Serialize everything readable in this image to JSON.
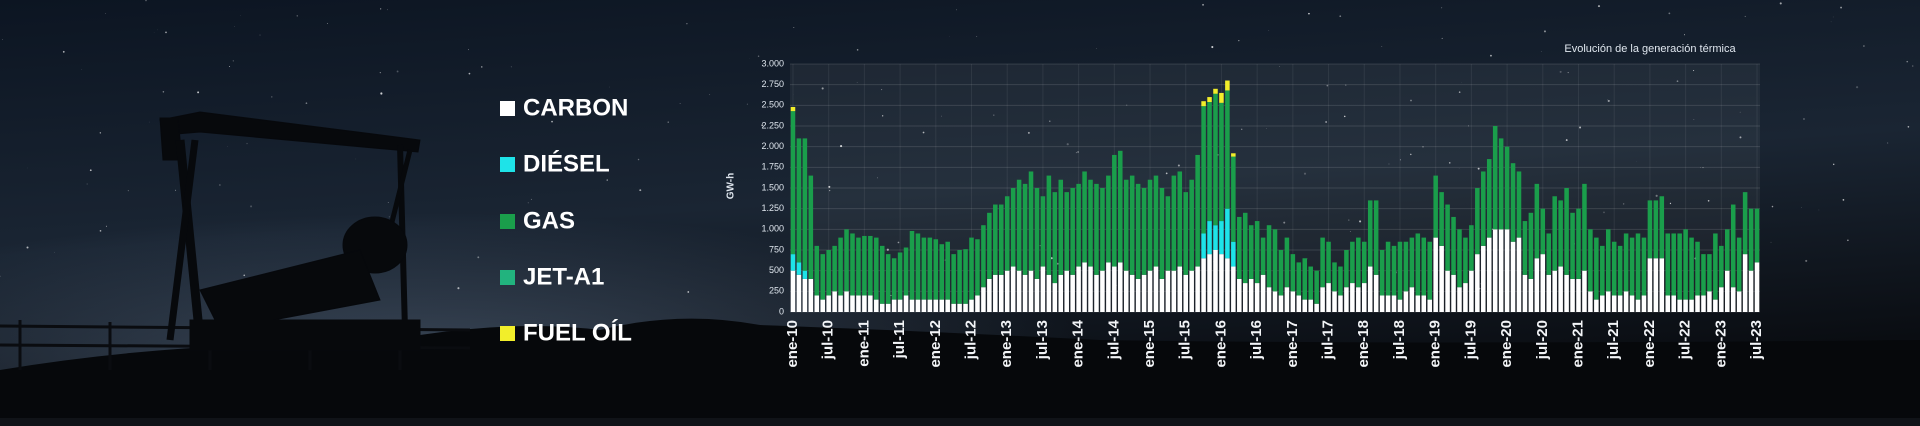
{
  "chart_data": {
    "type": "stacked_bar",
    "title": "Evolución de la generación térmica",
    "y_label": "GW-h",
    "ylim": [
      0,
      3000
    ],
    "yticks": [
      0,
      250,
      500,
      750,
      {
        "value": 1000,
        "label": "1.000"
      },
      {
        "value": 1250,
        "label": "1.250"
      },
      {
        "value": 1500,
        "label": "1.500"
      },
      {
        "value": 1750,
        "label": "1.750"
      },
      {
        "value": 2000,
        "label": "2.000"
      },
      {
        "value": 2250,
        "label": "2.250"
      },
      {
        "value": 2500,
        "label": "2.500"
      },
      {
        "value": 2750,
        "label": "2.750"
      },
      {
        "value": 3000,
        "label": "3.000"
      }
    ],
    "grid": true,
    "categories": [
      "ene-10",
      null,
      null,
      null,
      null,
      null,
      "jul-10",
      null,
      null,
      null,
      null,
      null,
      "ene-11",
      null,
      null,
      null,
      null,
      null,
      "jul-11",
      null,
      null,
      null,
      null,
      null,
      "ene-12",
      null,
      null,
      null,
      null,
      null,
      "jul-12",
      null,
      null,
      null,
      null,
      null,
      "ene-13",
      null,
      null,
      null,
      null,
      null,
      "jul-13",
      null,
      null,
      null,
      null,
      null,
      "ene-14",
      null,
      null,
      null,
      null,
      null,
      "jul-14",
      null,
      null,
      null,
      null,
      null,
      "ene-15",
      null,
      null,
      null,
      null,
      null,
      "jul-15",
      null,
      null,
      null,
      null,
      null,
      "ene-16",
      null,
      null,
      null,
      null,
      null,
      "jul-16",
      null,
      null,
      null,
      null,
      null,
      "ene-17",
      null,
      null,
      null,
      null,
      null,
      "jul-17",
      null,
      null,
      null,
      null,
      null,
      "ene-18",
      null,
      null,
      null,
      null,
      null,
      "jul-18",
      null,
      null,
      null,
      null,
      null,
      "ene-19",
      null,
      null,
      null,
      null,
      null,
      "jul-19",
      null,
      null,
      null,
      null,
      null,
      "ene-20",
      null,
      null,
      null,
      null,
      null,
      "jul-20",
      null,
      null,
      null,
      null,
      null,
      "ene-21",
      null,
      null,
      null,
      null,
      null,
      "jul-21",
      null,
      null,
      null,
      null,
      null,
      "ene-22",
      null,
      null,
      null,
      null,
      null,
      "jul-22",
      null,
      null,
      null,
      null,
      null,
      "ene-23",
      null,
      null,
      null,
      null,
      null,
      "jul-23"
    ],
    "series": [
      {
        "name": "CARBON",
        "color": "#ffffff",
        "values": [
          500,
          450,
          400,
          400,
          200,
          150,
          200,
          250,
          200,
          250,
          200,
          200,
          200,
          200,
          150,
          100,
          100,
          150,
          150,
          200,
          150,
          150,
          150,
          150,
          150,
          150,
          150,
          100,
          100,
          100,
          150,
          200,
          300,
          400,
          450,
          450,
          500,
          550,
          500,
          450,
          500,
          400,
          550,
          450,
          350,
          450,
          500,
          450,
          550,
          600,
          550,
          450,
          500,
          600,
          550,
          600,
          500,
          450,
          400,
          450,
          500,
          550,
          400,
          500,
          500,
          550,
          450,
          500,
          550,
          650,
          700,
          750,
          700,
          650,
          550,
          400,
          350,
          400,
          350,
          450,
          300,
          250,
          200,
          300,
          250,
          200,
          150,
          150,
          100,
          300,
          350,
          250,
          200,
          300,
          350,
          300,
          350,
          550,
          450,
          200,
          200,
          200,
          150,
          250,
          300,
          200,
          200,
          150,
          900,
          800,
          500,
          450,
          300,
          350,
          500,
          700,
          800,
          900,
          1000,
          1000,
          1000,
          850,
          900,
          450,
          400,
          650,
          700,
          450,
          500,
          550,
          450,
          400,
          400,
          500,
          250,
          150,
          200,
          250,
          200,
          200,
          250,
          200,
          150,
          200,
          650,
          650,
          650,
          200,
          200,
          150,
          150,
          150,
          200,
          200,
          250,
          150,
          300,
          500,
          300,
          250,
          700,
          500,
          600
        ]
      },
      {
        "name": "DIÉSEL",
        "color": "#1ee3e8",
        "values": [
          200,
          150,
          100,
          0,
          0,
          0,
          0,
          0,
          0,
          0,
          0,
          0,
          0,
          0,
          0,
          0,
          0,
          0,
          0,
          0,
          0,
          0,
          0,
          0,
          0,
          0,
          0,
          0,
          0,
          0,
          0,
          0,
          0,
          0,
          0,
          0,
          0,
          0,
          0,
          0,
          0,
          0,
          0,
          0,
          0,
          0,
          0,
          0,
          0,
          0,
          0,
          0,
          0,
          0,
          0,
          0,
          0,
          0,
          0,
          0,
          0,
          0,
          0,
          0,
          0,
          0,
          0,
          0,
          0,
          300,
          400,
          300,
          400,
          600,
          300,
          0,
          0,
          0,
          0,
          0,
          0,
          0,
          0,
          0,
          0,
          0,
          0,
          0,
          0,
          0,
          0,
          0,
          0,
          0,
          0,
          0,
          0,
          0,
          0,
          0,
          0,
          0,
          0,
          0,
          0,
          0,
          0,
          0,
          0,
          0,
          0,
          0,
          0,
          0,
          0,
          0,
          0,
          0,
          0,
          0,
          0,
          0,
          0,
          0,
          0,
          0,
          0,
          0,
          0,
          0,
          0,
          0,
          0,
          0,
          0,
          0,
          0,
          0,
          0,
          0,
          0,
          0,
          0,
          0,
          0,
          0,
          0,
          0,
          0,
          0,
          0,
          0,
          0,
          0,
          0,
          0,
          0,
          0,
          0,
          0,
          0,
          0,
          0
        ]
      },
      {
        "name": "JET-A1",
        "color": "#22b37e",
        "values": [
          0,
          0,
          0,
          0,
          0,
          0,
          0,
          0,
          0,
          0,
          0,
          0,
          0,
          0,
          0,
          0,
          0,
          0,
          0,
          0,
          0,
          0,
          0,
          0,
          0,
          0,
          0,
          0,
          0,
          0,
          0,
          0,
          0,
          0,
          0,
          0,
          0,
          0,
          0,
          0,
          0,
          0,
          0,
          0,
          0,
          0,
          0,
          0,
          0,
          0,
          0,
          0,
          0,
          0,
          0,
          0,
          0,
          0,
          0,
          0,
          0,
          0,
          0,
          0,
          0,
          0,
          0,
          0,
          0,
          0,
          0,
          0,
          0,
          0,
          0,
          0,
          0,
          0,
          0,
          0,
          0,
          0,
          0,
          0,
          0,
          0,
          0,
          0,
          0,
          0,
          0,
          0,
          0,
          0,
          0,
          0,
          0,
          0,
          0,
          0,
          0,
          0,
          0,
          0,
          0,
          0,
          0,
          0,
          0,
          0,
          0,
          0,
          0,
          0,
          0,
          0,
          0,
          0,
          0,
          0,
          0,
          0,
          0,
          0,
          0,
          0,
          0,
          0,
          0,
          0,
          0,
          0,
          0,
          0,
          0,
          0,
          0,
          0,
          0,
          0,
          0,
          0,
          0,
          0,
          0,
          0,
          0,
          0,
          0,
          0,
          0,
          0,
          0,
          0,
          0,
          0,
          0,
          0,
          0,
          0,
          0,
          0,
          0
        ]
      },
      {
        "name": "GAS",
        "color": "#1a9e4b",
        "values": [
          1730,
          1500,
          1600,
          1250,
          600,
          550,
          550,
          550,
          700,
          750,
          750,
          700,
          720,
          720,
          750,
          700,
          600,
          500,
          570,
          580,
          830,
          800,
          750,
          750,
          730,
          670,
          700,
          600,
          650,
          660,
          750,
          680,
          750,
          800,
          850,
          850,
          900,
          950,
          1100,
          1100,
          1200,
          1100,
          850,
          1200,
          1100,
          1150,
          950,
          1050,
          1000,
          1100,
          1050,
          1100,
          1000,
          1050,
          1350,
          1350,
          1100,
          1200,
          1150,
          1050,
          1100,
          1100,
          1100,
          900,
          1150,
          1150,
          1000,
          1100,
          1350,
          1540,
          1440,
          1590,
          1430,
          1430,
          1030,
          750,
          850,
          650,
          750,
          450,
          750,
          750,
          550,
          600,
          450,
          400,
          500,
          400,
          400,
          600,
          500,
          350,
          350,
          450,
          500,
          600,
          500,
          800,
          900,
          550,
          650,
          600,
          700,
          600,
          600,
          750,
          700,
          700,
          750,
          650,
          800,
          700,
          700,
          550,
          550,
          800,
          900,
          950,
          1250,
          1100,
          1000,
          950,
          800,
          650,
          800,
          900,
          550,
          500,
          900,
          800,
          1050,
          800,
          850,
          1050,
          750,
          750,
          600,
          750,
          650,
          600,
          700,
          700,
          800,
          700,
          700,
          700,
          750,
          750,
          750,
          800,
          850,
          750,
          650,
          500,
          450,
          800,
          500,
          500,
          1000,
          650,
          750,
          750,
          650
        ]
      },
      {
        "name": "FUEL OÍL",
        "color": "#f2ee2a",
        "values": [
          50,
          0,
          0,
          0,
          0,
          0,
          0,
          0,
          0,
          0,
          0,
          0,
          0,
          0,
          0,
          0,
          0,
          0,
          0,
          0,
          0,
          0,
          0,
          0,
          0,
          0,
          0,
          0,
          0,
          0,
          0,
          0,
          0,
          0,
          0,
          0,
          0,
          0,
          0,
          0,
          0,
          0,
          0,
          0,
          0,
          0,
          0,
          0,
          0,
          0,
          0,
          0,
          0,
          0,
          0,
          0,
          0,
          0,
          0,
          0,
          0,
          0,
          0,
          0,
          0,
          0,
          0,
          0,
          0,
          60,
          60,
          60,
          120,
          120,
          40,
          0,
          0,
          0,
          0,
          0,
          0,
          0,
          0,
          0,
          0,
          0,
          0,
          0,
          0,
          0,
          0,
          0,
          0,
          0,
          0,
          0,
          0,
          0,
          0,
          0,
          0,
          0,
          0,
          0,
          0,
          0,
          0,
          0,
          0,
          0,
          0,
          0,
          0,
          0,
          0,
          0,
          0,
          0,
          0,
          0,
          0,
          0,
          0,
          0,
          0,
          0,
          0,
          0,
          0,
          0,
          0,
          0,
          0,
          0,
          0,
          0,
          0,
          0,
          0,
          0,
          0,
          0,
          0,
          0,
          0,
          0,
          0,
          0,
          0,
          0,
          0,
          0,
          0,
          0,
          0,
          0,
          0,
          0,
          0,
          0,
          0,
          0,
          0
        ]
      }
    ]
  }
}
